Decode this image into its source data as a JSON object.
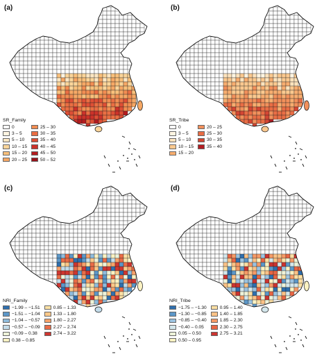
{
  "panels": [
    {
      "id": "a",
      "label": "(a)",
      "legend_title": "SR_Family",
      "metric": "sr",
      "legend": [
        {
          "label": "0",
          "color": "#ffffff"
        },
        {
          "label": "3 – 5",
          "color": "#fff5e2"
        },
        {
          "label": "5 – 10",
          "color": "#fde7c3"
        },
        {
          "label": "10 – 15",
          "color": "#fbd59a"
        },
        {
          "label": "15 – 20",
          "color": "#f9c07b"
        },
        {
          "label": "20 – 25",
          "color": "#f6a865"
        },
        {
          "label": "25 – 30",
          "color": "#f28d52"
        },
        {
          "label": "30 – 35",
          "color": "#ea6e43"
        },
        {
          "label": "35 – 40",
          "color": "#de4f35"
        },
        {
          "label": "40 – 45",
          "color": "#cc3229"
        },
        {
          "label": "45 – 50",
          "color": "#b41c1f"
        },
        {
          "label": "50 – 52",
          "color": "#99111a"
        }
      ]
    },
    {
      "id": "b",
      "label": "(b)",
      "legend_title": "SR_Tribe",
      "metric": "sr",
      "legend": [
        {
          "label": "0",
          "color": "#ffffff"
        },
        {
          "label": "3 – 5",
          "color": "#fff5e2"
        },
        {
          "label": "5 – 10",
          "color": "#fde3bd"
        },
        {
          "label": "10 – 15",
          "color": "#fbc98f"
        },
        {
          "label": "15 – 20",
          "color": "#f7ad6f"
        },
        {
          "label": "20 – 25",
          "color": "#f2905b"
        },
        {
          "label": "25 – 30",
          "color": "#e96d45"
        },
        {
          "label": "30 – 35",
          "color": "#d44633"
        },
        {
          "label": "35 – 40",
          "color": "#b31e23"
        }
      ]
    },
    {
      "id": "c",
      "label": "(c)",
      "legend_title": "NRI_Family",
      "metric": "nri",
      "legend": [
        {
          "label": "−1.99 – −1.51",
          "color": "#2f6fae"
        },
        {
          "label": "−1.51 – −1.04",
          "color": "#5c97c8"
        },
        {
          "label": "−1.04 – −0.57",
          "color": "#8fbcdc"
        },
        {
          "label": "−0.57 – −0.09",
          "color": "#c3dcea"
        },
        {
          "label": "−0.09 – 0.38",
          "color": "#eef3d9"
        },
        {
          "label": "0.38 – 0.85",
          "color": "#fbf2c2"
        },
        {
          "label": "0.85 – 1.33",
          "color": "#fde2a6"
        },
        {
          "label": "1.33 – 1.80",
          "color": "#fcc889"
        },
        {
          "label": "1.80 – 2.27",
          "color": "#f7a26a"
        },
        {
          "label": "2.27 – 2.74",
          "color": "#ea6c47"
        },
        {
          "label": "2.74 – 3.22",
          "color": "#cf3630"
        }
      ]
    },
    {
      "id": "d",
      "label": "(d)",
      "legend_title": "NRI_Tribe",
      "metric": "nri",
      "legend": [
        {
          "label": "−1.75 – −1.30",
          "color": "#2f6fae"
        },
        {
          "label": "−1.30 – −0.85",
          "color": "#5c97c8"
        },
        {
          "label": "−0.85 – −0.40",
          "color": "#9bc3e0"
        },
        {
          "label": "−0.40 – 0.05",
          "color": "#d4e7ec"
        },
        {
          "label": "0.05 – 0.50",
          "color": "#eef3d9"
        },
        {
          "label": "0.50 – 0.95",
          "color": "#fbf2c2"
        },
        {
          "label": "0.95 – 1.40",
          "color": "#fde0a3"
        },
        {
          "label": "1.40 – 1.85",
          "color": "#fbc286"
        },
        {
          "label": "1.85 – 2.30",
          "color": "#f59a66"
        },
        {
          "label": "2.30 – 2.75",
          "color": "#e86644"
        },
        {
          "label": "2.75 – 3.21",
          "color": "#cc3430"
        }
      ]
    }
  ]
}
